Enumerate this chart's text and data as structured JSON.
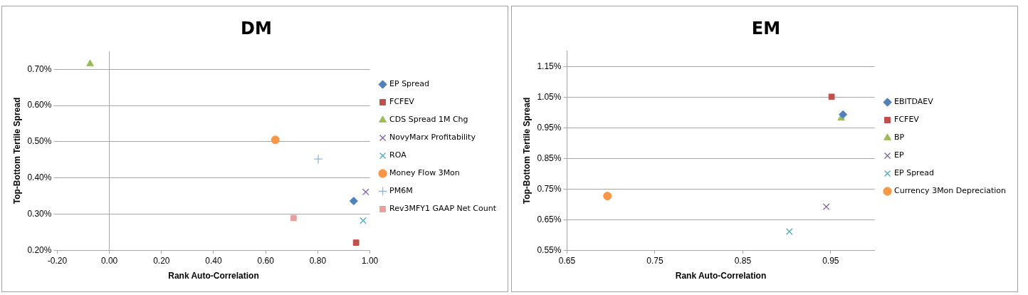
{
  "chart_data": [
    {
      "type": "scatter",
      "title": "DM",
      "xlabel": "Rank Auto-Correlation",
      "ylabel": "Top-Bottom Tertile Spread",
      "xlim": [
        -0.2,
        1.0
      ],
      "xticks": [
        {
          "value": -0.2,
          "label": "-0.20"
        },
        {
          "value": 0,
          "label": "0.00"
        },
        {
          "value": 0.2,
          "label": "0.20"
        },
        {
          "value": 0.4,
          "label": "0.40"
        },
        {
          "value": 0.6,
          "label": "0.60"
        },
        {
          "value": 0.8,
          "label": "0.80"
        },
        {
          "value": 1.0,
          "label": "1.00"
        }
      ],
      "ylim": [
        0.2,
        0.75
      ],
      "yticks": [
        {
          "value": 0.2,
          "label": "0.20%"
        },
        {
          "value": 0.3,
          "label": "0.30%"
        },
        {
          "value": 0.4,
          "label": "0.40%"
        },
        {
          "value": 0.5,
          "label": "0.50%"
        },
        {
          "value": 0.6,
          "label": "0.60%"
        },
        {
          "value": 0.7,
          "label": "0.70%"
        }
      ],
      "grid": "y",
      "legend": "right",
      "ref_lines": [
        {
          "axis": "x",
          "value": 0,
          "color": "#a6a6a6"
        }
      ],
      "series": [
        {
          "name": "EP Spread",
          "color": "#4f81bd",
          "marker": "diamond",
          "x": [
            0.938
          ],
          "values": [
            0.336
          ]
        },
        {
          "name": "FCFEV",
          "color": "#c0504d",
          "marker": "square",
          "x": [
            0.947
          ],
          "values": [
            0.221
          ]
        },
        {
          "name": "CDS Spread 1M Chg",
          "color": "#9bbb59",
          "marker": "triangle",
          "x": [
            -0.074
          ],
          "values": [
            0.715
          ]
        },
        {
          "name": "NovyMarx Profitability",
          "color": "#8064a2",
          "marker": "cross",
          "x": [
            0.984
          ],
          "values": [
            0.361
          ]
        },
        {
          "name": "ROA",
          "color": "#4bacc6",
          "marker": "cross",
          "x": [
            0.974
          ],
          "values": [
            0.282
          ]
        },
        {
          "name": "Money Flow 3Mon",
          "color": "#f79646",
          "marker": "circle",
          "x": [
            0.637
          ],
          "values": [
            0.505
          ]
        },
        {
          "name": "PM6M",
          "color": "#95b3d7",
          "marker": "plus",
          "x": [
            0.802
          ],
          "values": [
            0.452
          ]
        },
        {
          "name": "Rev3MFY1 GAAP Net Count",
          "color": "#e6a0a0",
          "marker": "square",
          "x": [
            0.707
          ],
          "values": [
            0.289
          ]
        }
      ]
    },
    {
      "type": "scatter",
      "title": "EM",
      "xlabel": "Rank Auto-Correlation",
      "ylabel": "Top-Bottom Tertile Spread",
      "xlim": [
        0.65,
        1.0
      ],
      "xticks": [
        0.65,
        0.75,
        0.85,
        0.95
      ],
      "ylim": [
        0.55,
        1.2
      ],
      "yticks": [
        {
          "value": 0.55,
          "label": "0.55%"
        },
        {
          "value": 0.65,
          "label": "0.65%"
        },
        {
          "value": 0.75,
          "label": "0.75%"
        },
        {
          "value": 0.85,
          "label": "0.85%"
        },
        {
          "value": 0.95,
          "label": "0.95%"
        },
        {
          "value": 1.05,
          "label": "1.05%"
        },
        {
          "value": 1.15,
          "label": "1.15%"
        }
      ],
      "grid": "y",
      "legend": "right",
      "series": [
        {
          "name": "EBITDAEV",
          "color": "#4f81bd",
          "marker": "diamond",
          "x": [
            0.964
          ],
          "values": [
            0.993
          ]
        },
        {
          "name": "FCFEV",
          "color": "#c0504d",
          "marker": "square",
          "x": [
            0.951
          ],
          "values": [
            1.051
          ]
        },
        {
          "name": "BP",
          "color": "#9bbb59",
          "marker": "triangle",
          "x": [
            0.962
          ],
          "values": [
            0.981
          ]
        },
        {
          "name": "EP",
          "color": "#8064a2",
          "marker": "cross",
          "x": [
            0.945
          ],
          "values": [
            0.692
          ]
        },
        {
          "name": "EP Spread",
          "color": "#4bacc6",
          "marker": "cross",
          "x": [
            0.903
          ],
          "values": [
            0.611
          ]
        },
        {
          "name": "Currency 3Mon Depreciation",
          "color": "#f79646",
          "marker": "circle",
          "x": [
            0.696
          ],
          "values": [
            0.727
          ]
        }
      ]
    }
  ]
}
